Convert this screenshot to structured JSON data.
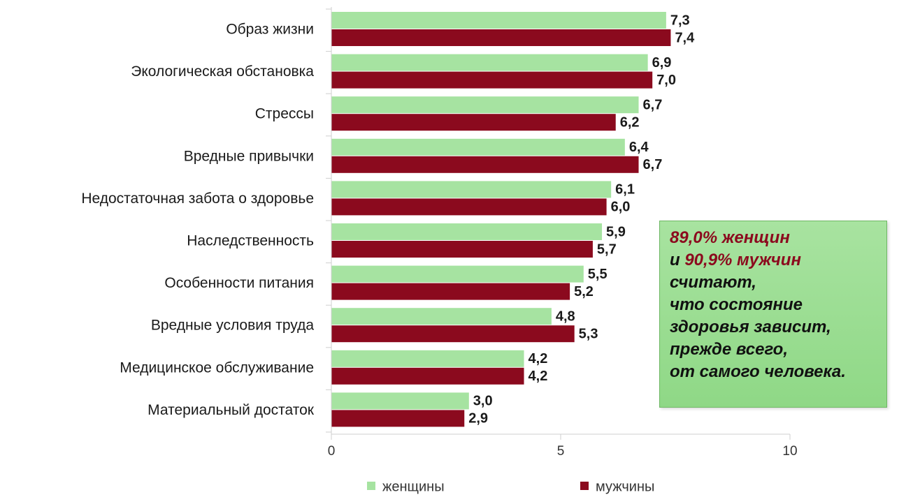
{
  "chart_data": {
    "type": "bar",
    "orientation": "horizontal",
    "categories": [
      "Образ жизни",
      "Экологическая обстановка",
      "Стрессы",
      "Вредные привычки",
      "Недостаточная забота о здоровье",
      "Наследственность",
      "Особенности питания",
      "Вредные условия труда",
      "Медицинское обслуживание",
      "Материальный достаток"
    ],
    "series": [
      {
        "name": "женщины",
        "color": "#a6e3a1",
        "values": [
          7.3,
          6.9,
          6.7,
          6.4,
          6.1,
          5.9,
          5.5,
          4.8,
          4.2,
          3.0
        ],
        "labels": [
          "7,3",
          "6,9",
          "6,7",
          "6,4",
          "6,1",
          "5,9",
          "5,5",
          "4,8",
          "4,2",
          "3,0"
        ]
      },
      {
        "name": "мужчины",
        "color": "#8b0a1e",
        "values": [
          7.4,
          7.0,
          6.2,
          6.7,
          6.0,
          5.7,
          5.2,
          5.3,
          4.2,
          2.9
        ],
        "labels": [
          "7,4",
          "7,0",
          "6,2",
          "6,7",
          "6,0",
          "5,7",
          "5,2",
          "5,3",
          "4,2",
          "2,9"
        ]
      }
    ],
    "xlim": [
      0,
      10
    ],
    "xticks": [
      0,
      5,
      10
    ],
    "xtick_labels": [
      "0",
      "5",
      "10"
    ],
    "grid": false,
    "legend_position": "bottom"
  },
  "callout": {
    "line1": "89,0% женщин",
    "line2_prefix": "и ",
    "line2_highlight": "90,9% мужчин",
    "line3": "считают,",
    "line4": "что состояние",
    "line5": "здоровья зависит,",
    "line6": "прежде всего,",
    "line7": "от самого человека."
  }
}
